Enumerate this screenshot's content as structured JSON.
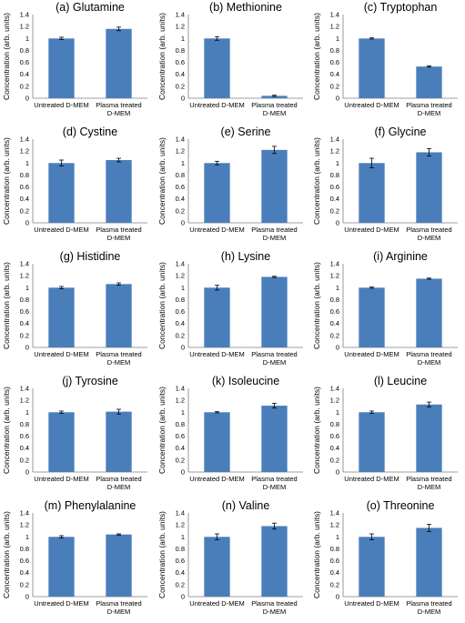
{
  "figure": {
    "ylabel": "Concentration (arb. units)",
    "bar_color": "#4a7ebb",
    "axis_color": "#7f7f7f",
    "categories": [
      "Untreated D-MEM",
      "Plasma treated D-MEM"
    ]
  },
  "chart_data": [
    {
      "type": "bar",
      "title": "(a) Glutamine",
      "categories": [
        "Untreated D-MEM",
        "Plasma treated D-MEM"
      ],
      "values": [
        1.0,
        1.16
      ],
      "errors": [
        0.02,
        0.03
      ],
      "ylabel": "Concentration (arb. units)",
      "ylim": [
        0,
        1.4
      ],
      "yticks": [
        0,
        0.2,
        0.4,
        0.6,
        0.8,
        1,
        1.2,
        1.4
      ]
    },
    {
      "type": "bar",
      "title": "(b) Methionine",
      "categories": [
        "Untreated D-MEM",
        "Plasma treated D-MEM"
      ],
      "values": [
        1.0,
        0.04
      ],
      "errors": [
        0.03,
        0.01
      ],
      "ylabel": "Concentration (arb. units)",
      "ylim": [
        0,
        1.4
      ],
      "yticks": [
        0,
        0.2,
        0.4,
        0.6,
        0.8,
        1,
        1.2,
        1.4
      ]
    },
    {
      "type": "bar",
      "title": "(c) Tryptophan",
      "categories": [
        "Untreated D-MEM",
        "Plasma treated D-MEM"
      ],
      "values": [
        1.0,
        0.53
      ],
      "errors": [
        0.01,
        0.01
      ],
      "ylabel": "Concentration (arb. units)",
      "ylim": [
        0,
        1.4
      ],
      "yticks": [
        0,
        0.2,
        0.4,
        0.6,
        0.8,
        1,
        1.2,
        1.4
      ]
    },
    {
      "type": "bar",
      "title": "(d) Cystine",
      "categories": [
        "Untreated D-MEM",
        "Plasma treated D-MEM"
      ],
      "values": [
        1.0,
        1.05
      ],
      "errors": [
        0.05,
        0.03
      ],
      "ylabel": "Concentration (arb. units)",
      "ylim": [
        0,
        1.4
      ],
      "yticks": [
        0,
        0.2,
        0.4,
        0.6,
        0.8,
        1,
        1.2,
        1.4
      ]
    },
    {
      "type": "bar",
      "title": "(e) Serine",
      "categories": [
        "Untreated D-MEM",
        "Plasma treated D-MEM"
      ],
      "values": [
        1.0,
        1.22
      ],
      "errors": [
        0.03,
        0.06
      ],
      "ylabel": "Concentration (arb. units)",
      "ylim": [
        0,
        1.4
      ],
      "yticks": [
        0,
        0.2,
        0.4,
        0.6,
        0.8,
        1,
        1.2,
        1.4
      ]
    },
    {
      "type": "bar",
      "title": "(f) Glycine",
      "categories": [
        "Untreated D-MEM",
        "Plasma treated D-MEM"
      ],
      "values": [
        1.0,
        1.18
      ],
      "errors": [
        0.08,
        0.06
      ],
      "ylabel": "Concentration (arb. units)",
      "ylim": [
        0,
        1.4
      ],
      "yticks": [
        0,
        0.2,
        0.4,
        0.6,
        0.8,
        1,
        1.2,
        1.4
      ]
    },
    {
      "type": "bar",
      "title": "(g) Histidine",
      "categories": [
        "Untreated D-MEM",
        "Plasma treated D-MEM"
      ],
      "values": [
        1.0,
        1.06
      ],
      "errors": [
        0.02,
        0.02
      ],
      "ylabel": "Concentration (arb. units)",
      "ylim": [
        0,
        1.4
      ],
      "yticks": [
        0,
        0.2,
        0.4,
        0.6,
        0.8,
        1,
        1.2,
        1.4
      ]
    },
    {
      "type": "bar",
      "title": "(h) Lysine",
      "categories": [
        "Untreated D-MEM",
        "Plasma treated D-MEM"
      ],
      "values": [
        1.0,
        1.18
      ],
      "errors": [
        0.04,
        0.01
      ],
      "ylabel": "Concentration (arb. units)",
      "ylim": [
        0,
        1.4
      ],
      "yticks": [
        0,
        0.2,
        0.4,
        0.6,
        0.8,
        1,
        1.2,
        1.4
      ]
    },
    {
      "type": "bar",
      "title": "(i) Arginine",
      "categories": [
        "Untreated D-MEM",
        "Plasma treated D-MEM"
      ],
      "values": [
        1.0,
        1.15
      ],
      "errors": [
        0.01,
        0.01
      ],
      "ylabel": "Concentration (arb. units)",
      "ylim": [
        0,
        1.4
      ],
      "yticks": [
        0,
        0.2,
        0.4,
        0.6,
        0.8,
        1,
        1.2,
        1.4
      ]
    },
    {
      "type": "bar",
      "title": "(j) Tyrosine",
      "categories": [
        "Untreated D-MEM",
        "Plasma treated D-MEM"
      ],
      "values": [
        1.0,
        1.01
      ],
      "errors": [
        0.02,
        0.04
      ],
      "ylabel": "Concentration (arb. units)",
      "ylim": [
        0,
        1.4
      ],
      "yticks": [
        0,
        0.2,
        0.4,
        0.6,
        0.8,
        1,
        1.2,
        1.4
      ]
    },
    {
      "type": "bar",
      "title": "(k) Isoleucine",
      "categories": [
        "Untreated D-MEM",
        "Plasma treated D-MEM"
      ],
      "values": [
        1.0,
        1.11
      ],
      "errors": [
        0.01,
        0.04
      ],
      "ylabel": "Concentration (arb. units)",
      "ylim": [
        0,
        1.4
      ],
      "yticks": [
        0,
        0.2,
        0.4,
        0.6,
        0.8,
        1,
        1.2,
        1.4
      ]
    },
    {
      "type": "bar",
      "title": "(l) Leucine",
      "categories": [
        "Untreated D-MEM",
        "Plasma treated D-MEM"
      ],
      "values": [
        1.0,
        1.13
      ],
      "errors": [
        0.02,
        0.04
      ],
      "ylabel": "Concentration (arb. units)",
      "ylim": [
        0,
        1.4
      ],
      "yticks": [
        0,
        0.2,
        0.4,
        0.6,
        0.8,
        1,
        1.2,
        1.4
      ]
    },
    {
      "type": "bar",
      "title": "(m) Phenylalanine",
      "categories": [
        "Untreated D-MEM",
        "Plasma treated D-MEM"
      ],
      "values": [
        1.0,
        1.04
      ],
      "errors": [
        0.02,
        0.01
      ],
      "ylabel": "Concentration (arb. units)",
      "ylim": [
        0,
        1.4
      ],
      "yticks": [
        0,
        0.2,
        0.4,
        0.6,
        0.8,
        1,
        1.2,
        1.4
      ]
    },
    {
      "type": "bar",
      "title": "(n) Valine",
      "categories": [
        "Untreated D-MEM",
        "Plasma treated D-MEM"
      ],
      "values": [
        1.0,
        1.18
      ],
      "errors": [
        0.05,
        0.05
      ],
      "ylabel": "Concentration (arb. units)",
      "ylim": [
        0,
        1.4
      ],
      "yticks": [
        0,
        0.2,
        0.4,
        0.6,
        0.8,
        1,
        1.2,
        1.4
      ]
    },
    {
      "type": "bar",
      "title": "(o) Threonine",
      "categories": [
        "Untreated D-MEM",
        "Plasma treated D-MEM"
      ],
      "values": [
        1.0,
        1.15
      ],
      "errors": [
        0.05,
        0.06
      ],
      "ylabel": "Concentration (arb. units)",
      "ylim": [
        0,
        1.4
      ],
      "yticks": [
        0,
        0.2,
        0.4,
        0.6,
        0.8,
        1,
        1.2,
        1.4
      ]
    }
  ]
}
